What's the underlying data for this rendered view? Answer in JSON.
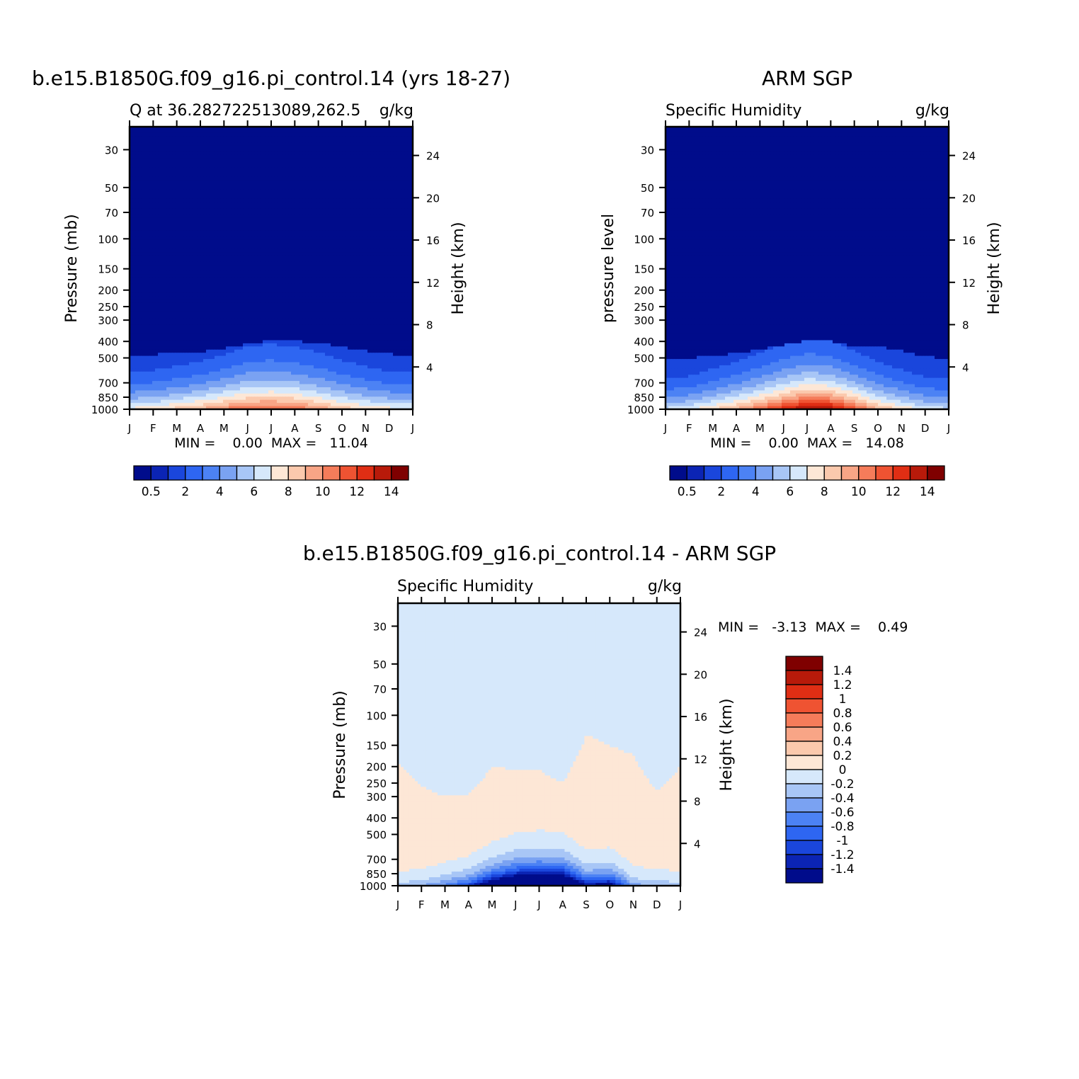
{
  "colors": {
    "model_palette": [
      "#000c8b",
      "#0b24b4",
      "#1a46dc",
      "#2e66f2",
      "#4c82f4",
      "#7aa2f2",
      "#a8c6f6",
      "#d6e8fb",
      "#fde7d6",
      "#fbc9ad",
      "#f8a586",
      "#f57c5a",
      "#ef5332",
      "#e02e14",
      "#b81a0a",
      "#7f0000"
    ],
    "diff_palette": [
      "#000c8b",
      "#0b24b4",
      "#1a46dc",
      "#2e66f2",
      "#4c82f4",
      "#7aa2f2",
      "#a8c6f6",
      "#d6e8fb",
      "#fde7d6",
      "#fbc9ad",
      "#f8a586",
      "#f57c5a",
      "#ef5332",
      "#e02e14",
      "#b81a0a",
      "#7f0000"
    ]
  },
  "panels": [
    {
      "id": "model",
      "title": "b.e15.B1850G.f09_g16.pi_control.14 (yrs 18-27)",
      "subtitle_left": "Q at 36.282722513089,262.5",
      "subtitle_right": "g/kg",
      "ylabel_left": "Pressure (mb)",
      "ylabel_right": "Height (km)",
      "stats": "MIN =    0.00  MAX =   11.04",
      "colorbar_labels": [
        "0.5",
        "2",
        "4",
        "6",
        "8",
        "10",
        "12",
        "14"
      ]
    },
    {
      "id": "obs",
      "title": "ARM SGP",
      "subtitle_left": "Specific Humidity",
      "subtitle_right": "g/kg",
      "ylabel_left": "pressure level",
      "ylabel_right": "Height (km)",
      "stats": "MIN =    0.00  MAX =   14.08",
      "colorbar_labels": [
        "0.5",
        "2",
        "4",
        "6",
        "8",
        "10",
        "12",
        "14"
      ]
    },
    {
      "id": "diff",
      "title": "b.e15.B1850G.f09_g16.pi_control.14 - ARM SGP",
      "subtitle_left": "Specific Humidity",
      "subtitle_right": "g/kg",
      "ylabel_left": "Pressure (mb)",
      "ylabel_right": "Height (km)",
      "stats": "MIN =   -3.13  MAX =    0.49",
      "colorbar_labels": [
        "1.4",
        "1.2",
        "1",
        "0.8",
        "0.6",
        "0.4",
        "0.2",
        "0",
        "-0.2",
        "-0.4",
        "-0.6",
        "-0.8",
        "-1",
        "-1.2",
        "-1.4"
      ]
    }
  ],
  "chart_data": [
    {
      "type": "heatmap",
      "title": "b.e15.B1850G.f09_g16.pi_control.14 (yrs 18-27)",
      "subtitle": "Q at 36.282722513089,262.5",
      "units": "g/kg",
      "x": [
        "J",
        "F",
        "M",
        "A",
        "M",
        "J",
        "J",
        "A",
        "S",
        "O",
        "N",
        "D",
        "J"
      ],
      "y_pressure_ticks": [
        30,
        50,
        70,
        100,
        150,
        200,
        250,
        300,
        400,
        500,
        700,
        850,
        1000
      ],
      "y_height_ticks": [
        4,
        8,
        12,
        16,
        20,
        24
      ],
      "ylim": [
        1000,
        22
      ],
      "levels": [
        0.5,
        1,
        2,
        3,
        4,
        5,
        6,
        7,
        8,
        9,
        10,
        11,
        12,
        13,
        14
      ],
      "min": 0.0,
      "max": 11.04,
      "surface_q": [
        7.0,
        7.4,
        8.2,
        9.0,
        10.0,
        10.8,
        11.04,
        10.6,
        9.6,
        8.4,
        7.6,
        7.1,
        7.0
      ],
      "scale_height_km": [
        2.5,
        2.5,
        2.6,
        2.7,
        2.9,
        3.2,
        3.3,
        3.2,
        3.1,
        2.9,
        2.7,
        2.5,
        2.5
      ],
      "moist_top_mb": [
        480,
        478,
        470,
        460,
        440,
        415,
        395,
        400,
        405,
        430,
        455,
        475,
        480
      ]
    },
    {
      "type": "heatmap",
      "title": "ARM SGP",
      "subtitle": "Specific Humidity",
      "units": "g/kg",
      "x": [
        "J",
        "F",
        "M",
        "A",
        "M",
        "J",
        "J",
        "A",
        "S",
        "O",
        "N",
        "D",
        "J"
      ],
      "y_pressure_ticks": [
        30,
        50,
        70,
        100,
        150,
        200,
        250,
        300,
        400,
        500,
        700,
        850,
        1000
      ],
      "y_height_ticks": [
        4,
        8,
        12,
        16,
        20,
        24
      ],
      "ylim": [
        1000,
        22
      ],
      "levels": [
        0.5,
        1,
        2,
        3,
        4,
        5,
        6,
        7,
        8,
        9,
        10,
        11,
        12,
        13,
        14
      ],
      "min": 0.0,
      "max": 14.08,
      "surface_q": [
        6.0,
        6.6,
        7.8,
        9.0,
        10.6,
        12.4,
        14.08,
        13.6,
        11.4,
        9.0,
        7.6,
        6.4,
        6.0
      ],
      "scale_height_km": [
        2.3,
        2.3,
        2.5,
        2.7,
        2.9,
        3.1,
        3.2,
        3.1,
        2.9,
        2.7,
        2.5,
        2.3,
        2.3
      ],
      "moist_top_mb": [
        500,
        500,
        490,
        470,
        445,
        420,
        395,
        400,
        430,
        425,
        455,
        495,
        500
      ]
    },
    {
      "type": "heatmap",
      "title": "b.e15.B1850G.f09_g16.pi_control.14 - ARM SGP",
      "subtitle": "Specific Humidity",
      "units": "g/kg",
      "x": [
        "J",
        "F",
        "M",
        "A",
        "M",
        "J",
        "J",
        "A",
        "S",
        "O",
        "N",
        "D",
        "J"
      ],
      "y_pressure_ticks": [
        30,
        50,
        70,
        100,
        150,
        200,
        250,
        300,
        400,
        500,
        700,
        850,
        1000
      ],
      "y_height_ticks": [
        4,
        8,
        12,
        16,
        20,
        24
      ],
      "ylim": [
        1000,
        22
      ],
      "levels": [
        -1.4,
        -1.2,
        -1,
        -0.8,
        -0.6,
        -0.4,
        -0.2,
        0,
        0.2,
        0.4,
        0.6,
        0.8,
        1,
        1.2,
        1.4
      ],
      "min": -3.13,
      "max": 0.49,
      "low_level_min": [
        -0.4,
        -0.5,
        -0.8,
        -1.2,
        -2.2,
        -2.9,
        -3.13,
        -3.0,
        -1.6,
        -1.8,
        -0.6,
        -0.5,
        -0.4
      ],
      "positive_layer_top_mb": [
        190,
        260,
        300,
        290,
        200,
        210,
        210,
        250,
        130,
        150,
        170,
        280,
        200
      ]
    }
  ]
}
